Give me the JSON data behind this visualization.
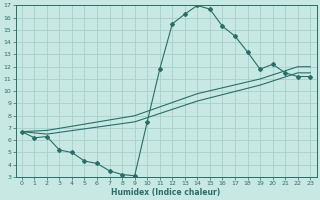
{
  "xlabel": "Humidex (Indice chaleur)",
  "background_color": "#c8e8e4",
  "grid_color": "#a8d0cc",
  "line_color": "#2a6e68",
  "xlim": [
    -0.5,
    23.5
  ],
  "ylim": [
    3,
    17
  ],
  "xticks": [
    0,
    1,
    2,
    3,
    4,
    5,
    6,
    7,
    8,
    9,
    10,
    11,
    12,
    13,
    14,
    15,
    16,
    17,
    18,
    19,
    20,
    21,
    22,
    23
  ],
  "yticks": [
    3,
    4,
    5,
    6,
    7,
    8,
    9,
    10,
    11,
    12,
    13,
    14,
    15,
    16,
    17
  ],
  "curve1_x": [
    0,
    1,
    2,
    3,
    4,
    5,
    6,
    7,
    8,
    9,
    10,
    11,
    12,
    13,
    14,
    15,
    16,
    17,
    18,
    19,
    20,
    21,
    22,
    23
  ],
  "curve1_y": [
    6.7,
    6.2,
    6.3,
    5.2,
    5.0,
    4.3,
    4.1,
    3.5,
    3.2,
    3.1,
    7.5,
    11.8,
    15.5,
    16.3,
    17.0,
    16.7,
    15.3,
    14.5,
    13.2,
    11.8,
    12.2,
    11.5,
    11.2,
    11.2
  ],
  "curve2_x": [
    0,
    2,
    9,
    14,
    19,
    22,
    23
  ],
  "curve2_y": [
    6.7,
    6.5,
    7.5,
    9.2,
    10.5,
    11.5,
    11.5
  ],
  "curve3_x": [
    0,
    2,
    9,
    14,
    19,
    22,
    23
  ],
  "curve3_y": [
    6.7,
    6.8,
    8.0,
    9.8,
    11.0,
    12.0,
    12.0
  ]
}
